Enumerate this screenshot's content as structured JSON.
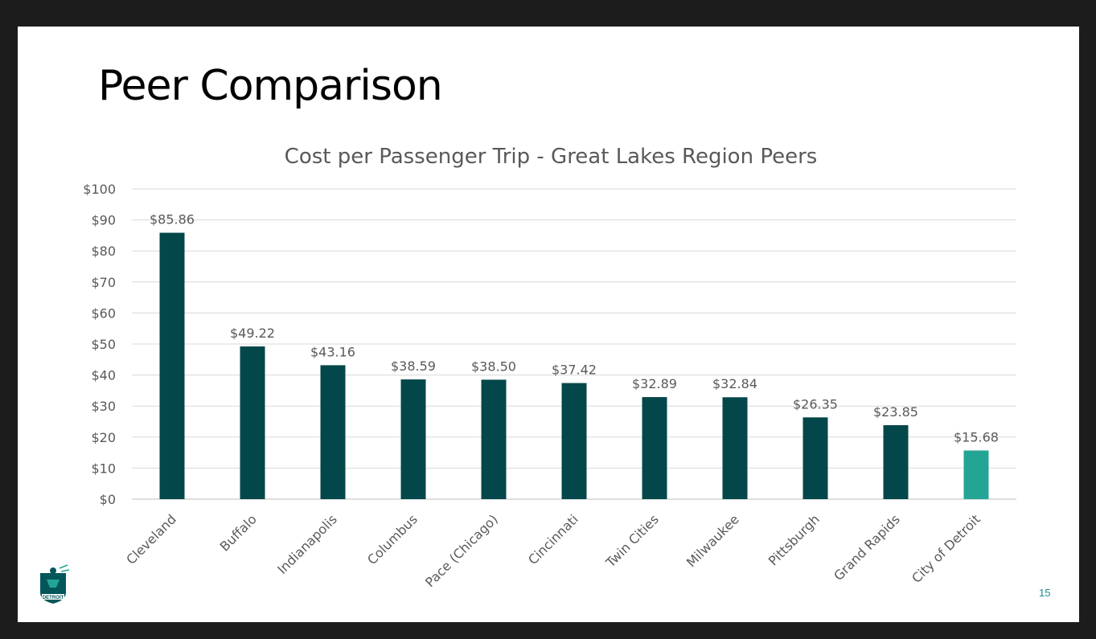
{
  "slide": {
    "title": "Peer Comparison",
    "page_number": "15",
    "logo_text": "DETROIT"
  },
  "colors": {
    "bar": "#04474a",
    "highlight_bar": "#23a595",
    "grid": "#d9d9d9",
    "text": "#595959",
    "slide_title": "#000000",
    "page_number": "#1a8c87"
  },
  "icons": {
    "logo": "city-of-detroit-logo-icon"
  },
  "chart_data": {
    "type": "bar",
    "title": "Cost per Passenger Trip - Great Lakes Region Peers",
    "xlabel": "",
    "ylabel": "",
    "categories": [
      "Cleveland",
      "Buffalo",
      "Indianapolis",
      "Columbus",
      "Pace (Chicago)",
      "Cincinnati",
      "Twin Cities",
      "Milwaukee",
      "Pittsburgh",
      "Grand Rapids",
      "City of Detroit"
    ],
    "values": [
      85.86,
      49.22,
      43.16,
      38.59,
      38.5,
      37.42,
      32.89,
      32.84,
      26.35,
      23.85,
      15.68
    ],
    "data_labels": [
      "$85.86",
      "$49.22",
      "$43.16",
      "$38.59",
      "$38.50",
      "$37.42",
      "$32.89",
      "$32.84",
      "$26.35",
      "$23.85",
      "$15.68"
    ],
    "highlight_category": "City of Detroit",
    "ylim": [
      0,
      100
    ],
    "yticks": [
      0,
      10,
      20,
      30,
      40,
      50,
      60,
      70,
      80,
      90,
      100
    ],
    "ytick_labels": [
      "$0",
      "$10",
      "$20",
      "$30",
      "$40",
      "$50",
      "$60",
      "$70",
      "$80",
      "$90",
      "$100"
    ],
    "grid": true,
    "legend": "none"
  }
}
